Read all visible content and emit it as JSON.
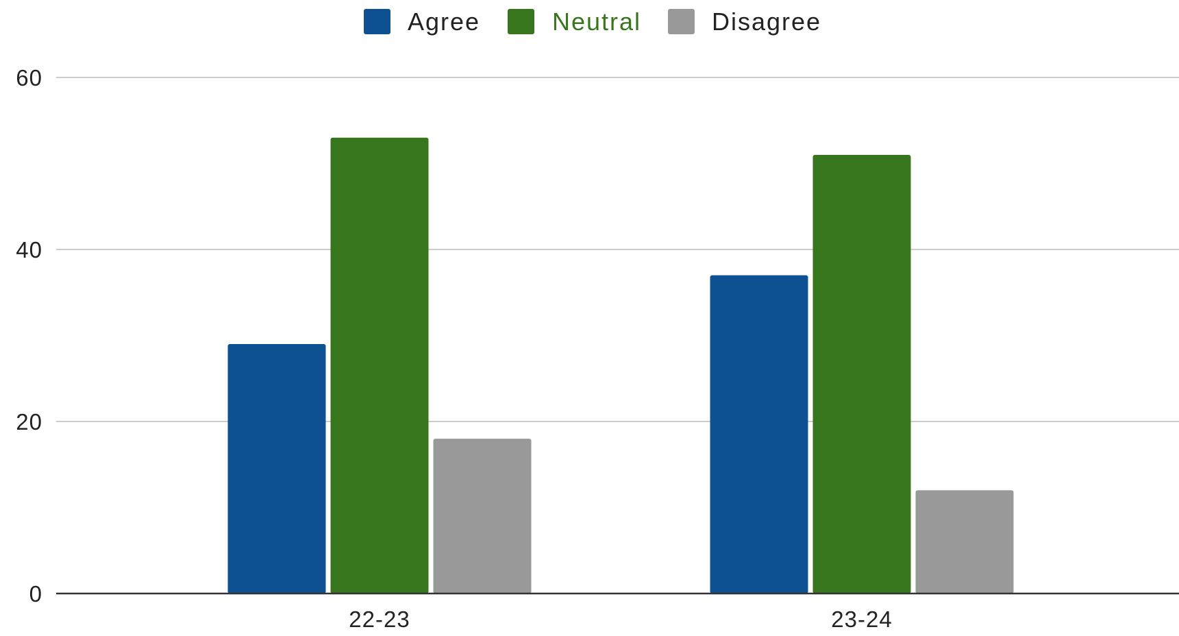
{
  "chart_data": {
    "type": "bar",
    "categories": [
      "22-23",
      "23-24"
    ],
    "series": [
      {
        "name": "Agree",
        "color": "#0e5193",
        "values": [
          29,
          37
        ]
      },
      {
        "name": "Neutral",
        "color": "#38761d",
        "values": [
          53,
          51
        ]
      },
      {
        "name": "Disagree",
        "color": "#999999",
        "values": [
          18,
          12
        ]
      }
    ],
    "ylim": [
      0,
      60
    ],
    "yticks": [
      "0",
      "20",
      "40",
      "60"
    ],
    "title": "",
    "xlabel": "",
    "ylabel": "",
    "grid": true,
    "legend_position": "top-center",
    "legend_text_colors": [
      "#222222",
      "#38761d",
      "#222222"
    ],
    "colors": {
      "gridline": "#cccccc",
      "baseline": "#333333"
    }
  }
}
